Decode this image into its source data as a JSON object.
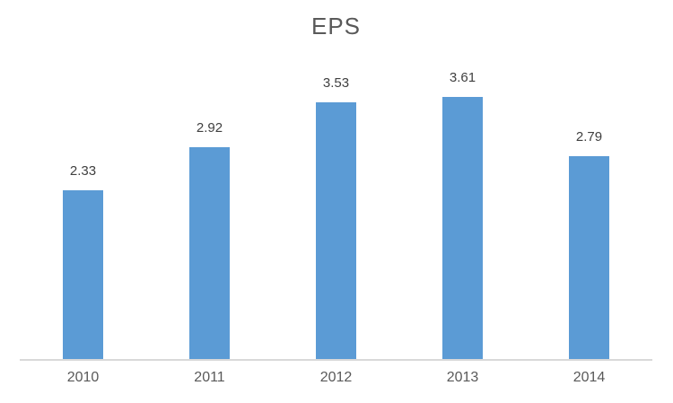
{
  "chart_data": {
    "type": "bar",
    "title": "EPS",
    "categories": [
      "2010",
      "2011",
      "2012",
      "2013",
      "2014"
    ],
    "values": [
      2.33,
      2.92,
      3.53,
      3.61,
      2.79
    ],
    "value_labels": [
      "2.33",
      "2.92",
      "3.53",
      "3.61",
      "2.79"
    ],
    "xlabel": "",
    "ylabel": "",
    "ylim": [
      0,
      4
    ],
    "grid": false,
    "legend": false,
    "data_labels": true,
    "colors": {
      "bar": "#5B9BD5",
      "axis_line": "#D9D9D9",
      "title_text": "#595959",
      "data_label_text": "#404040",
      "tick_label_text": "#595959",
      "background": "#ffffff"
    }
  }
}
